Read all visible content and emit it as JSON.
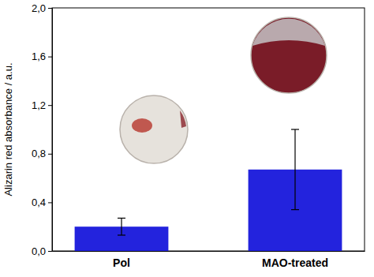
{
  "chart_data": {
    "type": "bar",
    "y_label": "Alizarin red absorbance / a.u.",
    "categories": [
      "Pol",
      "MAO-treated"
    ],
    "values": [
      0.2,
      0.67
    ],
    "errors": [
      0.07,
      0.33
    ],
    "color": "#2323dd",
    "ylim": [
      0,
      2.0
    ],
    "yticks": [
      {
        "value": 0,
        "label": "0,0"
      },
      {
        "value": 0.4,
        "label": "0,4"
      },
      {
        "value": 0.8,
        "label": "0,8"
      },
      {
        "value": 1.2,
        "label": "1,2"
      },
      {
        "value": 1.6,
        "label": "1,6"
      },
      {
        "value": 2.0,
        "label": "2,0"
      }
    ],
    "grid": false
  }
}
